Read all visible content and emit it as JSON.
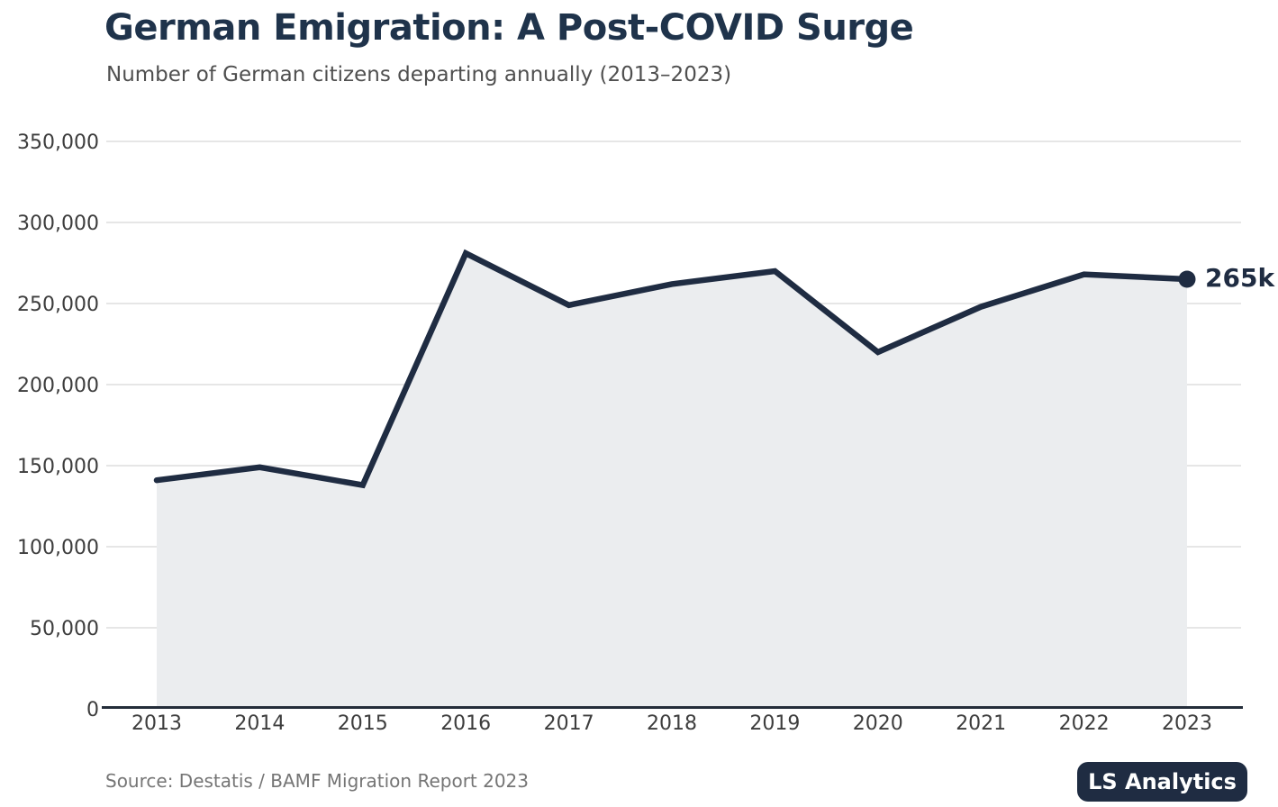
{
  "header": {
    "title": "German Emigration: A Post-COVID Surge",
    "subtitle": "Number of German citizens departing annually (2013–2023)"
  },
  "footer": {
    "source": "Source: Destatis / BAMF Migration Report 2023",
    "brand_badge": "LS Analytics"
  },
  "colors": {
    "title": "#1f334b",
    "subtitle_gray": "#4f4f4f",
    "source_gray": "#757575",
    "line_navy": "#1f2c42",
    "area_fill": "#ebedef",
    "gridline": "#e6e6e6",
    "axis": "#242d3a",
    "tick_label": "#3d3d3d",
    "badge_bg": "#1f2c42",
    "badge_text": "#ffffff"
  },
  "chart_data": {
    "type": "area",
    "title": "German Emigration: A Post-COVID Surge",
    "subtitle": "Number of German citizens departing annually (2013–2023)",
    "series_name": "German citizens departing annually",
    "x": [
      2013,
      2014,
      2015,
      2016,
      2017,
      2018,
      2019,
      2020,
      2021,
      2022,
      2023
    ],
    "values": [
      141000,
      149000,
      138000,
      281000,
      249000,
      262000,
      270000,
      220000,
      248000,
      268000,
      265000
    ],
    "end_label": "265k",
    "xlabel": "",
    "ylabel": "",
    "ylim": [
      0,
      350000
    ],
    "ytick_step": 50000,
    "ytick_labels": [
      "0",
      "50,000",
      "100,000",
      "150,000",
      "200,000",
      "250,000",
      "300,000",
      "350,000"
    ],
    "grid": "horizontal",
    "legend": "none"
  }
}
